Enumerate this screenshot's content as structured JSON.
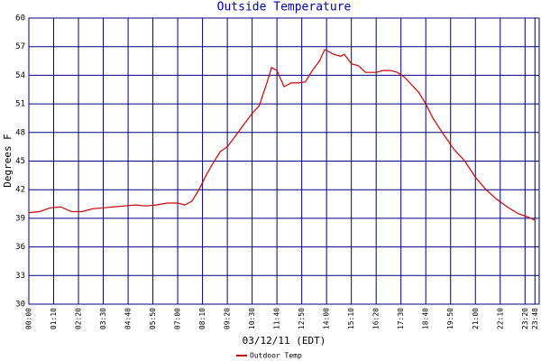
{
  "chart_data": {
    "type": "line",
    "title": "Outside Temperature",
    "x_label": "03/12/11 (EDT)",
    "y_label": "Degrees F",
    "x": [
      "00:00",
      "00:30",
      "01:00",
      "01:30",
      "02:00",
      "02:30",
      "03:00",
      "03:30",
      "04:00",
      "04:30",
      "05:00",
      "05:30",
      "06:00",
      "06:30",
      "07:00",
      "07:20",
      "07:40",
      "08:00",
      "08:20",
      "08:40",
      "09:00",
      "09:20",
      "09:40",
      "10:00",
      "10:30",
      "10:50",
      "11:10",
      "11:25",
      "11:40",
      "12:00",
      "12:20",
      "12:40",
      "13:00",
      "13:20",
      "13:40",
      "13:55",
      "14:20",
      "14:40",
      "14:50",
      "15:10",
      "15:30",
      "15:50",
      "16:20",
      "16:40",
      "17:00",
      "17:20",
      "17:40",
      "18:00",
      "18:20",
      "18:40",
      "19:00",
      "19:30",
      "20:00",
      "20:30",
      "21:00",
      "21:30",
      "22:00",
      "22:30",
      "23:00",
      "23:30",
      "23:48"
    ],
    "series": [
      {
        "name": "Outdoor Temp",
        "color": "#cc0000",
        "values": [
          39.6,
          39.7,
          40.1,
          40.2,
          39.7,
          39.7,
          40.0,
          40.1,
          40.2,
          40.3,
          40.4,
          40.3,
          40.4,
          40.6,
          40.6,
          40.4,
          40.8,
          42.0,
          43.5,
          44.8,
          46.0,
          46.5,
          47.5,
          48.5,
          50.0,
          50.8,
          53.0,
          54.8,
          54.5,
          52.8,
          53.2,
          53.2,
          53.3,
          54.5,
          55.5,
          56.7,
          56.2,
          56.0,
          56.2,
          55.2,
          55.0,
          54.3,
          54.3,
          54.5,
          54.5,
          54.3,
          53.8,
          53.0,
          52.2,
          51.0,
          49.5,
          47.8,
          46.2,
          45.0,
          43.3,
          42.0,
          41.0,
          40.2,
          39.5,
          39.1,
          38.8
        ]
      }
    ],
    "xlim": [
      "00:00",
      "24:00"
    ],
    "xticks": [
      "00:00",
      "01:10",
      "02:20",
      "03:30",
      "04:40",
      "05:50",
      "07:00",
      "08:10",
      "09:20",
      "10:30",
      "11:40",
      "12:50",
      "14:00",
      "15:10",
      "16:20",
      "17:30",
      "18:40",
      "19:50",
      "21:00",
      "22:10",
      "23:20",
      "23:48"
    ],
    "ylim": [
      30,
      60
    ],
    "yticks": [
      30,
      33,
      36,
      39,
      42,
      45,
      48,
      51,
      54,
      57,
      60
    ],
    "grid": true,
    "grid_color": "#000080"
  }
}
